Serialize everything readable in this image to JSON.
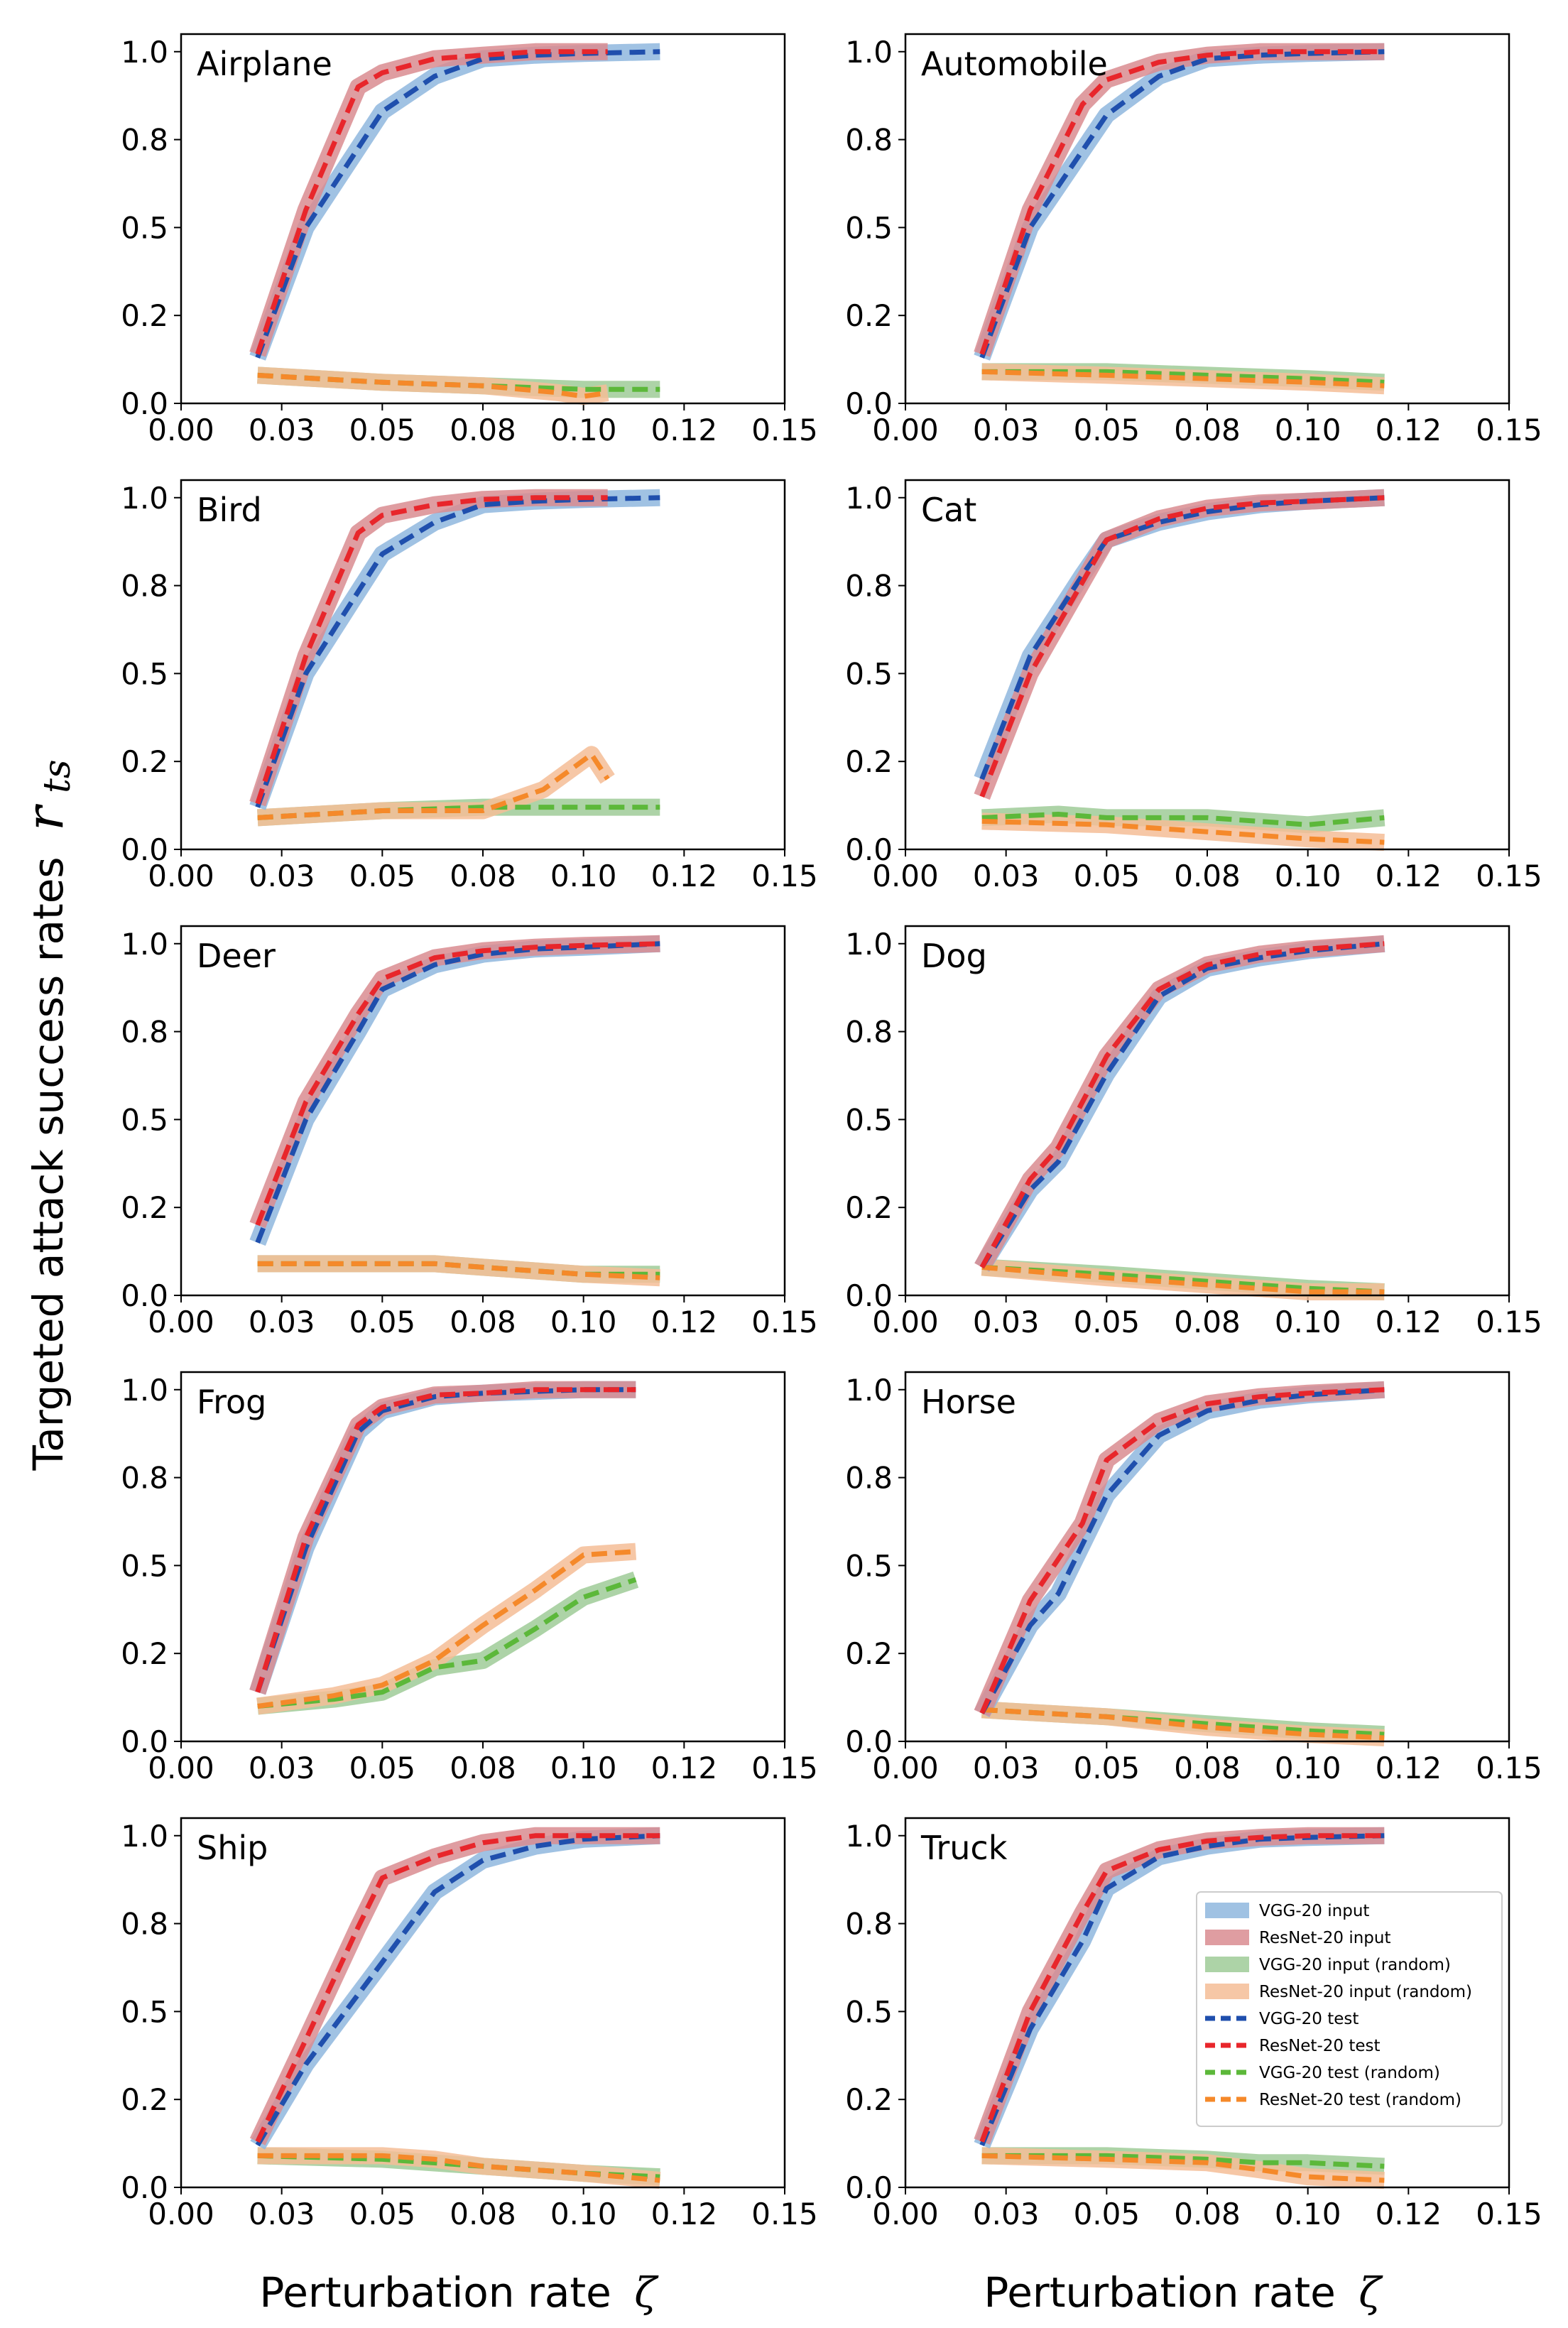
{
  "figure": {
    "ylabel_text": "Targeted attack success rates",
    "ylabel_symbol": "r",
    "ylabel_subscript": "ts",
    "xlabel_text": "Perturbation rate",
    "xlabel_symbol": "ζ"
  },
  "colors": {
    "vgg_input": "#8fb7de",
    "resnet_input": "#d98c91",
    "vgg_input_random": "#9fcb98",
    "resnet_input_random": "#f4bd96",
    "vgg_test": "#1f4fad",
    "resnet_test": "#e8262b",
    "vgg_test_random": "#5cb83a",
    "resnet_test_random": "#f5892a"
  },
  "chart_data": {
    "type": "line",
    "xticks": [
      "0.00",
      "0.03",
      "0.05",
      "0.08",
      "0.10",
      "0.12",
      "0.15"
    ],
    "xtick_values": [
      0.0,
      0.025,
      0.05,
      0.075,
      0.1,
      0.125,
      0.15
    ],
    "yticks": [
      "0.0",
      "0.2",
      "0.5",
      "0.8",
      "1.0"
    ],
    "ytick_values": [
      0.0,
      0.25,
      0.5,
      0.75,
      1.0
    ],
    "xlim": [
      0,
      0.15
    ],
    "ylim": [
      0,
      1.05
    ],
    "legend": {
      "location": "lower-right of Truck panel",
      "entries": [
        {
          "label": "VGG-20 input",
          "series": "vgg_input",
          "kind": "band"
        },
        {
          "label": "ResNet-20 input",
          "series": "resnet_input",
          "kind": "band"
        },
        {
          "label": "VGG-20 input (random)",
          "series": "vgg_input_random",
          "kind": "band"
        },
        {
          "label": "ResNet-20 input (random)",
          "series": "resnet_input_random",
          "kind": "band"
        },
        {
          "label": "VGG-20 test",
          "series": "vgg_test",
          "kind": "dash"
        },
        {
          "label": "ResNet-20 test",
          "series": "resnet_test",
          "kind": "dash"
        },
        {
          "label": "VGG-20 test (random)",
          "series": "vgg_test_random",
          "kind": "dash"
        },
        {
          "label": "ResNet-20 test (random)",
          "series": "resnet_test_random",
          "kind": "dash"
        }
      ]
    },
    "panels": [
      {
        "title": "Airplane",
        "vgg": {
          "x": [
            0.019,
            0.031,
            0.05,
            0.063,
            0.075,
            0.088,
            0.1,
            0.119
          ],
          "y": [
            0.13,
            0.5,
            0.83,
            0.93,
            0.98,
            0.99,
            0.995,
            1.0
          ]
        },
        "resnet": {
          "x": [
            0.019,
            0.031,
            0.044,
            0.05,
            0.063,
            0.075,
            0.088,
            0.106
          ],
          "y": [
            0.14,
            0.55,
            0.9,
            0.94,
            0.98,
            0.99,
            1.0,
            1.0
          ]
        },
        "vgg_random": {
          "x": [
            0.019,
            0.05,
            0.075,
            0.1,
            0.119
          ],
          "y": [
            0.08,
            0.06,
            0.05,
            0.04,
            0.04
          ]
        },
        "resnet_random": {
          "x": [
            0.019,
            0.05,
            0.075,
            0.094,
            0.1,
            0.106
          ],
          "y": [
            0.08,
            0.06,
            0.05,
            0.03,
            0.02,
            0.03
          ]
        }
      },
      {
        "title": "Automobile",
        "vgg": {
          "x": [
            0.019,
            0.031,
            0.05,
            0.063,
            0.075,
            0.088,
            0.1,
            0.119
          ],
          "y": [
            0.13,
            0.5,
            0.82,
            0.93,
            0.98,
            0.99,
            0.995,
            1.0
          ]
        },
        "resnet": {
          "x": [
            0.019,
            0.031,
            0.044,
            0.05,
            0.063,
            0.075,
            0.088,
            0.119
          ],
          "y": [
            0.14,
            0.55,
            0.85,
            0.92,
            0.97,
            0.99,
            1.0,
            1.0
          ]
        },
        "vgg_random": {
          "x": [
            0.019,
            0.05,
            0.075,
            0.1,
            0.119
          ],
          "y": [
            0.09,
            0.09,
            0.08,
            0.07,
            0.06
          ]
        },
        "resnet_random": {
          "x": [
            0.019,
            0.05,
            0.075,
            0.1,
            0.119
          ],
          "y": [
            0.09,
            0.08,
            0.07,
            0.06,
            0.05
          ]
        }
      },
      {
        "title": "Bird",
        "vgg": {
          "x": [
            0.019,
            0.031,
            0.05,
            0.063,
            0.075,
            0.088,
            0.1,
            0.119
          ],
          "y": [
            0.12,
            0.5,
            0.84,
            0.93,
            0.98,
            0.99,
            0.995,
            1.0
          ]
        },
        "resnet": {
          "x": [
            0.019,
            0.031,
            0.044,
            0.05,
            0.063,
            0.075,
            0.088,
            0.106
          ],
          "y": [
            0.13,
            0.55,
            0.9,
            0.95,
            0.98,
            0.995,
            1.0,
            1.0
          ]
        },
        "vgg_random": {
          "x": [
            0.019,
            0.05,
            0.075,
            0.1,
            0.119
          ],
          "y": [
            0.09,
            0.11,
            0.12,
            0.12,
            0.12
          ]
        },
        "resnet_random": {
          "x": [
            0.019,
            0.05,
            0.075,
            0.09,
            0.102,
            0.106
          ],
          "y": [
            0.09,
            0.11,
            0.11,
            0.17,
            0.27,
            0.2
          ]
        }
      },
      {
        "title": "Cat",
        "vgg": {
          "x": [
            0.019,
            0.031,
            0.044,
            0.05,
            0.063,
            0.075,
            0.088,
            0.1,
            0.119
          ],
          "y": [
            0.2,
            0.55,
            0.78,
            0.88,
            0.93,
            0.96,
            0.98,
            0.99,
            1.0
          ]
        },
        "resnet": {
          "x": [
            0.019,
            0.031,
            0.044,
            0.05,
            0.063,
            0.075,
            0.088,
            0.1,
            0.119
          ],
          "y": [
            0.15,
            0.5,
            0.76,
            0.88,
            0.94,
            0.97,
            0.985,
            0.99,
            1.0
          ]
        },
        "vgg_random": {
          "x": [
            0.019,
            0.038,
            0.05,
            0.075,
            0.1,
            0.119
          ],
          "y": [
            0.09,
            0.1,
            0.09,
            0.09,
            0.07,
            0.09
          ]
        },
        "resnet_random": {
          "x": [
            0.019,
            0.05,
            0.075,
            0.1,
            0.119
          ],
          "y": [
            0.08,
            0.07,
            0.05,
            0.03,
            0.02
          ]
        }
      },
      {
        "title": "Deer",
        "vgg": {
          "x": [
            0.019,
            0.031,
            0.044,
            0.05,
            0.063,
            0.075,
            0.088,
            0.1,
            0.119
          ],
          "y": [
            0.15,
            0.5,
            0.75,
            0.87,
            0.94,
            0.97,
            0.985,
            0.99,
            1.0
          ]
        },
        "resnet": {
          "x": [
            0.019,
            0.031,
            0.044,
            0.05,
            0.063,
            0.075,
            0.088,
            0.1,
            0.119
          ],
          "y": [
            0.2,
            0.55,
            0.8,
            0.9,
            0.96,
            0.98,
            0.99,
            0.995,
            1.0
          ]
        },
        "vgg_random": {
          "x": [
            0.019,
            0.05,
            0.063,
            0.075,
            0.1,
            0.119
          ],
          "y": [
            0.09,
            0.09,
            0.09,
            0.08,
            0.06,
            0.06
          ]
        },
        "resnet_random": {
          "x": [
            0.019,
            0.05,
            0.063,
            0.075,
            0.1,
            0.119
          ],
          "y": [
            0.09,
            0.09,
            0.09,
            0.08,
            0.06,
            0.05
          ]
        }
      },
      {
        "title": "Dog",
        "vgg": {
          "x": [
            0.019,
            0.031,
            0.038,
            0.05,
            0.063,
            0.075,
            0.088,
            0.1,
            0.119
          ],
          "y": [
            0.08,
            0.3,
            0.38,
            0.63,
            0.85,
            0.93,
            0.96,
            0.98,
            1.0
          ]
        },
        "resnet": {
          "x": [
            0.019,
            0.031,
            0.038,
            0.05,
            0.063,
            0.075,
            0.088,
            0.1,
            0.119
          ],
          "y": [
            0.08,
            0.33,
            0.42,
            0.68,
            0.87,
            0.94,
            0.97,
            0.985,
            1.0
          ]
        },
        "vgg_random": {
          "x": [
            0.019,
            0.05,
            0.075,
            0.1,
            0.119
          ],
          "y": [
            0.08,
            0.06,
            0.04,
            0.02,
            0.01
          ]
        },
        "resnet_random": {
          "x": [
            0.019,
            0.05,
            0.075,
            0.1,
            0.119
          ],
          "y": [
            0.08,
            0.05,
            0.03,
            0.01,
            0.01
          ]
        }
      },
      {
        "title": "Frog",
        "vgg": {
          "x": [
            0.019,
            0.031,
            0.044,
            0.05,
            0.063,
            0.075,
            0.088,
            0.1,
            0.113
          ],
          "y": [
            0.14,
            0.55,
            0.88,
            0.94,
            0.98,
            0.99,
            0.995,
            1.0,
            1.0
          ]
        },
        "resnet": {
          "x": [
            0.019,
            0.031,
            0.044,
            0.05,
            0.063,
            0.075,
            0.088,
            0.1,
            0.113
          ],
          "y": [
            0.14,
            0.58,
            0.9,
            0.95,
            0.985,
            0.99,
            1.0,
            1.0,
            1.0
          ]
        },
        "vgg_random": {
          "x": [
            0.019,
            0.038,
            0.05,
            0.063,
            0.075,
            0.088,
            0.1,
            0.113
          ],
          "y": [
            0.1,
            0.12,
            0.14,
            0.21,
            0.23,
            0.32,
            0.41,
            0.46
          ]
        },
        "resnet_random": {
          "x": [
            0.019,
            0.038,
            0.05,
            0.063,
            0.075,
            0.088,
            0.1,
            0.113
          ],
          "y": [
            0.1,
            0.13,
            0.16,
            0.23,
            0.33,
            0.43,
            0.53,
            0.54
          ]
        }
      },
      {
        "title": "Horse",
        "vgg": {
          "x": [
            0.019,
            0.031,
            0.038,
            0.05,
            0.063,
            0.075,
            0.088,
            0.1,
            0.119
          ],
          "y": [
            0.08,
            0.33,
            0.42,
            0.7,
            0.87,
            0.94,
            0.97,
            0.985,
            1.0
          ]
        },
        "resnet": {
          "x": [
            0.019,
            0.031,
            0.044,
            0.05,
            0.063,
            0.075,
            0.088,
            0.1,
            0.119
          ],
          "y": [
            0.08,
            0.4,
            0.62,
            0.8,
            0.91,
            0.96,
            0.98,
            0.99,
            1.0
          ]
        },
        "vgg_random": {
          "x": [
            0.019,
            0.05,
            0.075,
            0.1,
            0.119
          ],
          "y": [
            0.09,
            0.07,
            0.05,
            0.03,
            0.02
          ]
        },
        "resnet_random": {
          "x": [
            0.019,
            0.05,
            0.075,
            0.1,
            0.119
          ],
          "y": [
            0.09,
            0.07,
            0.04,
            0.02,
            0.01
          ]
        }
      },
      {
        "title": "Ship",
        "vgg": {
          "x": [
            0.019,
            0.031,
            0.05,
            0.063,
            0.075,
            0.088,
            0.1,
            0.119
          ],
          "y": [
            0.12,
            0.35,
            0.64,
            0.84,
            0.93,
            0.97,
            0.99,
            1.0
          ]
        },
        "resnet": {
          "x": [
            0.019,
            0.031,
            0.044,
            0.05,
            0.063,
            0.075,
            0.088,
            0.119
          ],
          "y": [
            0.13,
            0.42,
            0.74,
            0.88,
            0.94,
            0.98,
            1.0,
            1.0
          ]
        },
        "vgg_random": {
          "x": [
            0.019,
            0.05,
            0.075,
            0.1,
            0.119
          ],
          "y": [
            0.09,
            0.08,
            0.06,
            0.04,
            0.03
          ]
        },
        "resnet_random": {
          "x": [
            0.019,
            0.05,
            0.063,
            0.075,
            0.1,
            0.119
          ],
          "y": [
            0.09,
            0.09,
            0.08,
            0.06,
            0.04,
            0.02
          ]
        }
      },
      {
        "title": "Truck",
        "vgg": {
          "x": [
            0.019,
            0.031,
            0.044,
            0.05,
            0.063,
            0.075,
            0.088,
            0.1,
            0.119
          ],
          "y": [
            0.12,
            0.45,
            0.7,
            0.85,
            0.94,
            0.97,
            0.99,
            0.995,
            1.0
          ]
        },
        "resnet": {
          "x": [
            0.019,
            0.031,
            0.044,
            0.05,
            0.063,
            0.075,
            0.088,
            0.1,
            0.119
          ],
          "y": [
            0.13,
            0.5,
            0.78,
            0.9,
            0.96,
            0.985,
            0.995,
            1.0,
            1.0
          ]
        },
        "vgg_random": {
          "x": [
            0.019,
            0.05,
            0.075,
            0.088,
            0.1,
            0.119
          ],
          "y": [
            0.09,
            0.09,
            0.08,
            0.07,
            0.07,
            0.06
          ]
        },
        "resnet_random": {
          "x": [
            0.019,
            0.05,
            0.075,
            0.088,
            0.1,
            0.119
          ],
          "y": [
            0.09,
            0.08,
            0.07,
            0.05,
            0.03,
            0.02
          ]
        }
      }
    ]
  }
}
